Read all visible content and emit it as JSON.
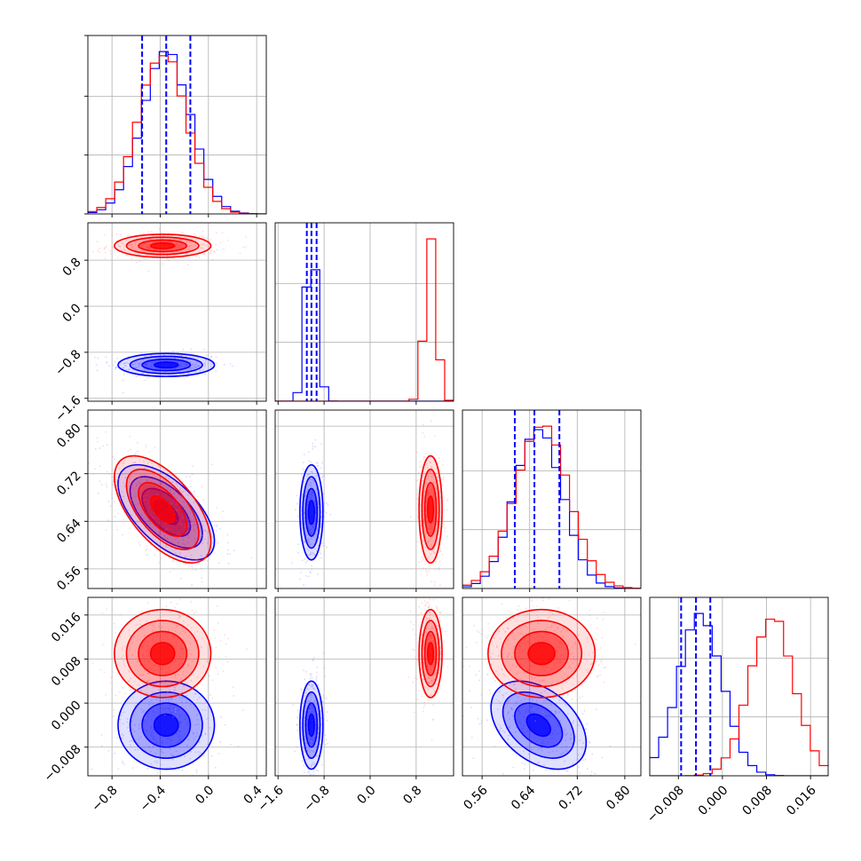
{
  "chart_data": {
    "type": "corner",
    "parameters": 4,
    "colors": {
      "series_blue": "#0000ff",
      "series_red": "#ff0000",
      "grid": "#b0b0b0"
    },
    "grid": true,
    "series": [
      {
        "color": "#0000ff",
        "means": [
          -0.35,
          -1.02,
          0.655,
          -0.004
        ],
        "stds": [
          0.2,
          0.1,
          0.04,
          0.004
        ],
        "corr_01": 0.0,
        "corr_02": -0.6,
        "corr_23": -0.4,
        "quantile_lines": {
          "p0": [
            -0.55,
            -0.35,
            -0.15
          ],
          "p1": [
            -1.1,
            -1.02,
            -0.93
          ],
          "p2": [
            0.615,
            0.648,
            0.69
          ],
          "p3": [
            -0.0075,
            -0.0048,
            -0.0022
          ]
        }
      },
      {
        "color": "#ff0000",
        "means": [
          -0.38,
          1.05,
          0.66,
          0.009
        ],
        "stds": [
          0.2,
          0.1,
          0.045,
          0.004
        ],
        "corr_01": 0.0,
        "corr_02": -0.6,
        "corr_23": 0.0
      }
    ],
    "panels": [
      {
        "row": 0,
        "col": 0,
        "type": "hist",
        "param": 0
      },
      {
        "row": 1,
        "col": 0,
        "type": "scatter",
        "x": 0,
        "y": 1
      },
      {
        "row": 1,
        "col": 1,
        "type": "hist",
        "param": 1
      },
      {
        "row": 2,
        "col": 0,
        "type": "scatter",
        "x": 0,
        "y": 2
      },
      {
        "row": 2,
        "col": 1,
        "type": "scatter",
        "x": 1,
        "y": 2
      },
      {
        "row": 2,
        "col": 2,
        "type": "hist",
        "param": 2
      },
      {
        "row": 3,
        "col": 0,
        "type": "scatter",
        "x": 0,
        "y": 3
      },
      {
        "row": 3,
        "col": 1,
        "type": "scatter",
        "x": 1,
        "y": 3
      },
      {
        "row": 3,
        "col": 2,
        "type": "scatter",
        "x": 2,
        "y": 3
      },
      {
        "row": 3,
        "col": 3,
        "type": "hist",
        "param": 3
      }
    ],
    "axes": [
      {
        "range": [
          -1.0,
          0.48
        ],
        "ticks": [
          -0.8,
          -0.4,
          0.0,
          0.4
        ],
        "tick_labels": [
          "−0.8",
          "−0.4",
          "0.0",
          "0.4"
        ]
      },
      {
        "range": [
          -1.65,
          1.45
        ],
        "ticks": [
          -1.6,
          -0.8,
          0.0,
          0.8
        ],
        "tick_labels": [
          "−1.6",
          "−0.8",
          "0.0",
          "0.8"
        ]
      },
      {
        "range": [
          0.527,
          0.827
        ],
        "ticks": [
          0.56,
          0.64,
          0.72,
          0.8
        ],
        "tick_labels": [
          "0.56",
          "0.64",
          "0.72",
          "0.80"
        ]
      },
      {
        "range": [
          -0.0132,
          0.0192
        ],
        "ticks": [
          -0.008,
          0.0,
          0.008,
          0.016
        ],
        "tick_labels": [
          "−0.008",
          "0.000",
          "0.008",
          "0.016"
        ]
      }
    ]
  }
}
